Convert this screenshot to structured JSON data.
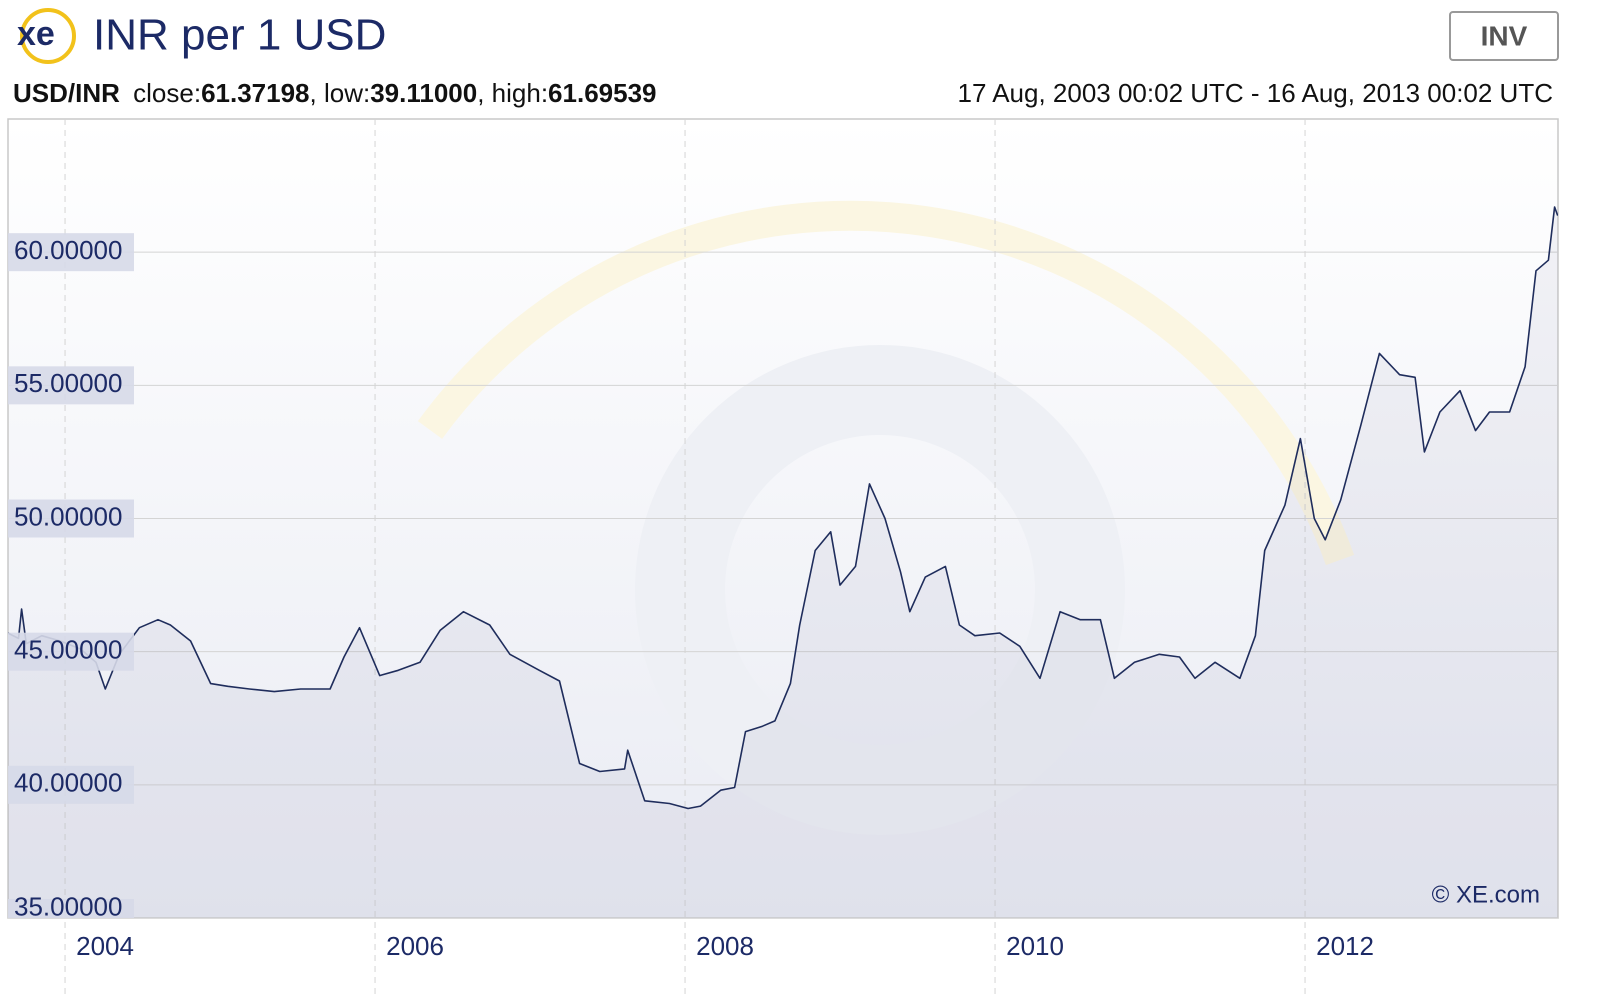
{
  "chart_data": {
    "type": "line",
    "logo": "xe",
    "title": "INR per 1 USD",
    "button": "INV",
    "pair": "USD/INR",
    "stats": [
      {
        "label": "close:",
        "value": "61.37198"
      },
      {
        "label": ", low:",
        "value": "39.11000"
      },
      {
        "label": ", high:",
        "value": "61.69539"
      }
    ],
    "date_range": "17 Aug, 2003 00:02 UTC - 16 Aug, 2013 00:02 UTC",
    "credit": "© XE.com",
    "color": "#1f2d5c",
    "grid": true,
    "xlim": [
      2003.632,
      2013.632
    ],
    "ylim": [
      35,
      65
    ],
    "xticks": [
      2004,
      2006,
      2008,
      2010,
      2012
    ],
    "yticks": [
      {
        "value": 35,
        "label": "35.00000"
      },
      {
        "value": 40,
        "label": "40.00000"
      },
      {
        "value": 45,
        "label": "45.00000"
      },
      {
        "value": 50,
        "label": "50.00000"
      },
      {
        "value": 55,
        "label": "55.00000"
      },
      {
        "value": 60,
        "label": "60.00000"
      }
    ],
    "x": [
      2003.63,
      2003.7,
      2003.72,
      2003.75,
      2003.85,
      2003.97,
      2004.1,
      2004.2,
      2004.26,
      2004.35,
      2004.48,
      2004.6,
      2004.68,
      2004.81,
      2004.94,
      2005.05,
      2005.19,
      2005.35,
      2005.52,
      2005.71,
      2005.8,
      2005.9,
      2006.03,
      2006.15,
      2006.29,
      2006.42,
      2006.57,
      2006.74,
      2006.87,
      2007.06,
      2007.19,
      2007.32,
      2007.45,
      2007.61,
      2007.63,
      2007.74,
      2007.9,
      2008.02,
      2008.1,
      2008.23,
      2008.32,
      2008.39,
      2008.5,
      2008.58,
      2008.68,
      2008.74,
      2008.84,
      2008.94,
      2009.0,
      2009.1,
      2009.19,
      2009.29,
      2009.39,
      2009.45,
      2009.55,
      2009.68,
      2009.77,
      2009.87,
      2010.03,
      2010.16,
      2010.29,
      2010.42,
      2010.55,
      2010.68,
      2010.77,
      2010.9,
      2011.06,
      2011.19,
      2011.29,
      2011.42,
      2011.58,
      2011.68,
      2011.74,
      2011.87,
      2011.97,
      2012.06,
      2012.13,
      2012.23,
      2012.36,
      2012.48,
      2012.61,
      2012.71,
      2012.77,
      2012.87,
      2013.0,
      2013.1,
      2013.19,
      2013.32,
      2013.42,
      2013.49,
      2013.57,
      2013.61,
      2013.63
    ],
    "values": [
      45.7,
      45.5,
      46.6,
      45.3,
      45.6,
      45.4,
      45.1,
      44.6,
      43.6,
      44.9,
      45.9,
      46.2,
      46.0,
      45.4,
      43.8,
      43.7,
      43.6,
      43.5,
      43.6,
      43.6,
      44.8,
      45.9,
      44.1,
      44.3,
      44.6,
      45.8,
      46.5,
      46.0,
      44.9,
      44.3,
      43.9,
      40.8,
      40.5,
      40.6,
      41.3,
      39.4,
      39.3,
      39.11,
      39.2,
      39.8,
      39.9,
      42.0,
      42.2,
      42.4,
      43.8,
      46.0,
      48.8,
      49.5,
      47.5,
      48.2,
      51.3,
      50.0,
      48.0,
      46.5,
      47.8,
      48.2,
      46.0,
      45.6,
      45.7,
      45.2,
      44.0,
      46.5,
      46.2,
      46.2,
      44.0,
      44.6,
      44.9,
      44.8,
      44.0,
      44.6,
      44.0,
      45.6,
      48.8,
      50.5,
      53.0,
      50.0,
      49.2,
      50.7,
      53.5,
      56.2,
      55.4,
      55.3,
      52.5,
      54.0,
      54.8,
      53.3,
      54.0,
      54.0,
      55.7,
      59.3,
      59.7,
      61.69539,
      61.37198
    ]
  }
}
